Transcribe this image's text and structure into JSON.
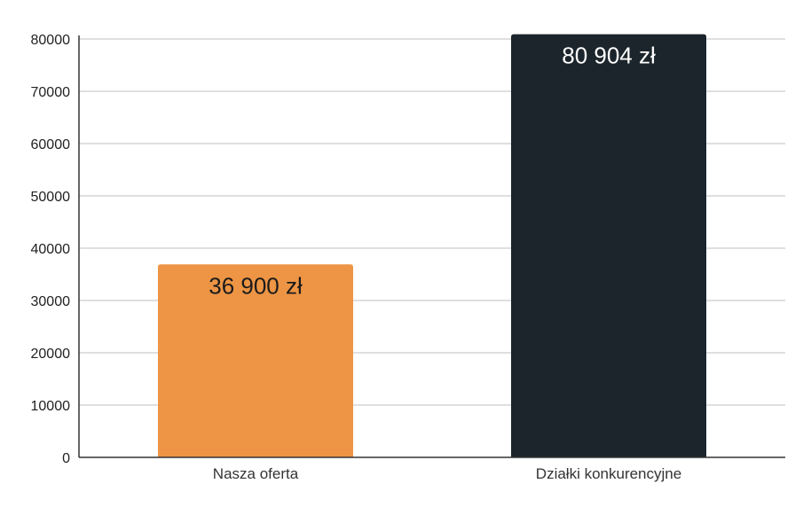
{
  "chart_data": {
    "type": "bar",
    "title": "",
    "xlabel": "",
    "ylabel": "",
    "categories": [
      "Nasza oferta",
      "Działki konkurencyjne"
    ],
    "values": [
      36900,
      80904
    ],
    "data_labels": [
      "36 900 zł",
      "80 904 zł"
    ],
    "bar_colors": [
      "#ED9545",
      "#1B252B"
    ],
    "data_label_colors": [
      "#1B1B1B",
      "#FFFFFF"
    ],
    "ylim": [
      0,
      80000
    ],
    "yticks": [
      "0",
      "10000",
      "20000",
      "30000",
      "40000",
      "50000",
      "60000",
      "70000",
      "80000"
    ],
    "grid": true,
    "grid_color": "#CCCCCC",
    "axis_color": "#333333",
    "legend": "none"
  }
}
